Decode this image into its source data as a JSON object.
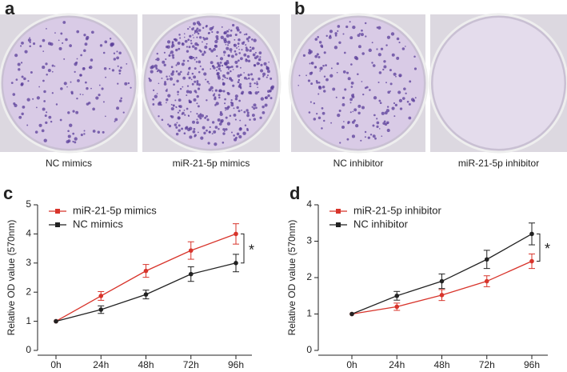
{
  "panel_labels": [
    "a",
    "b",
    "c",
    "d"
  ],
  "images": [
    {
      "caption": "NC mimics"
    },
    {
      "caption": "miR-21-5p mimics"
    },
    {
      "caption": "NC inhibitor"
    },
    {
      "caption": "miR-21-5p inhibitor"
    }
  ],
  "chart_data": [
    {
      "type": "line",
      "y_label": "Relative OD value (570nm)",
      "categories": [
        "0h",
        "24h",
        "48h",
        "72h",
        "96h"
      ],
      "ylim": [
        0,
        5
      ],
      "yticks": [
        0,
        1,
        2,
        3,
        4,
        5
      ],
      "annotation": "*",
      "series": [
        {
          "name": "miR-21-5p mimics",
          "color": "#d8342b",
          "values": [
            1,
            1.87,
            2.73,
            3.43,
            4.0
          ],
          "errors": [
            0,
            0.15,
            0.22,
            0.3,
            0.35
          ]
        },
        {
          "name": "NC mimics",
          "color": "#222222",
          "values": [
            1,
            1.4,
            1.92,
            2.62,
            3.0
          ],
          "errors": [
            0,
            0.13,
            0.15,
            0.25,
            0.3
          ]
        }
      ]
    },
    {
      "type": "line",
      "y_label": "Relative OD value (570nm)",
      "categories": [
        "0h",
        "24h",
        "48h",
        "72h",
        "96h"
      ],
      "ylim": [
        0,
        4
      ],
      "yticks": [
        0,
        1,
        2,
        3,
        4
      ],
      "annotation": "*",
      "series": [
        {
          "name": "miR-21-5p inhibitor",
          "color": "#d8342b",
          "values": [
            1,
            1.2,
            1.52,
            1.9,
            2.45
          ],
          "errors": [
            0,
            0.1,
            0.15,
            0.15,
            0.2
          ]
        },
        {
          "name": "NC inhibitor",
          "color": "#222222",
          "values": [
            1,
            1.5,
            1.9,
            2.5,
            3.2
          ],
          "errors": [
            0,
            0.12,
            0.2,
            0.25,
            0.3
          ]
        }
      ]
    }
  ]
}
